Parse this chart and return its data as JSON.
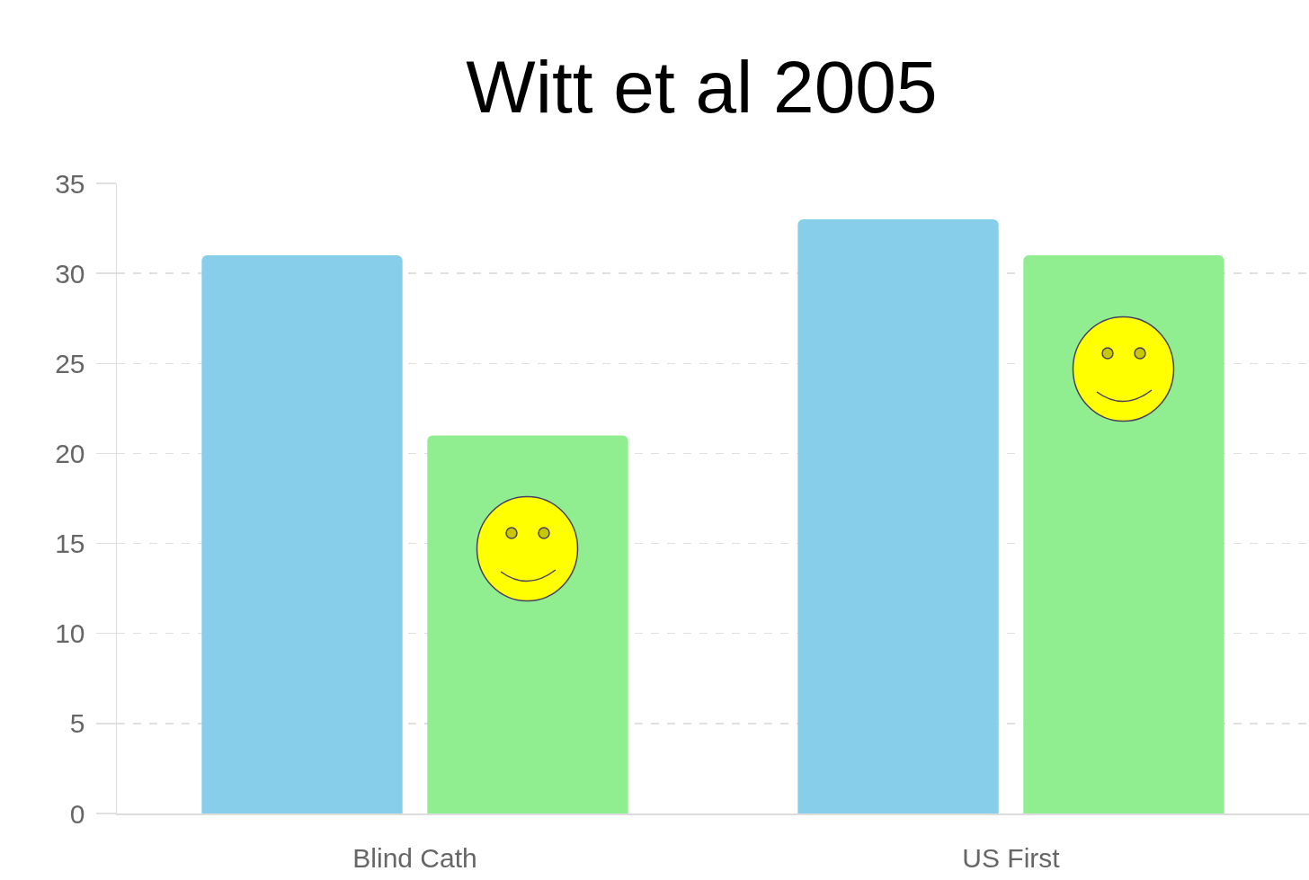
{
  "chart_data": {
    "type": "bar",
    "title": "Witt et al 2005",
    "categories": [
      "Blind Cath",
      "US First"
    ],
    "series": [
      {
        "color": "#87ceeb",
        "values": [
          31,
          33
        ]
      },
      {
        "color": "#90ee90",
        "values": [
          21,
          31
        ]
      }
    ],
    "ylim": [
      0,
      35
    ],
    "yticks": [
      0,
      5,
      10,
      15,
      20,
      25,
      30,
      35
    ],
    "grid": "y"
  }
}
